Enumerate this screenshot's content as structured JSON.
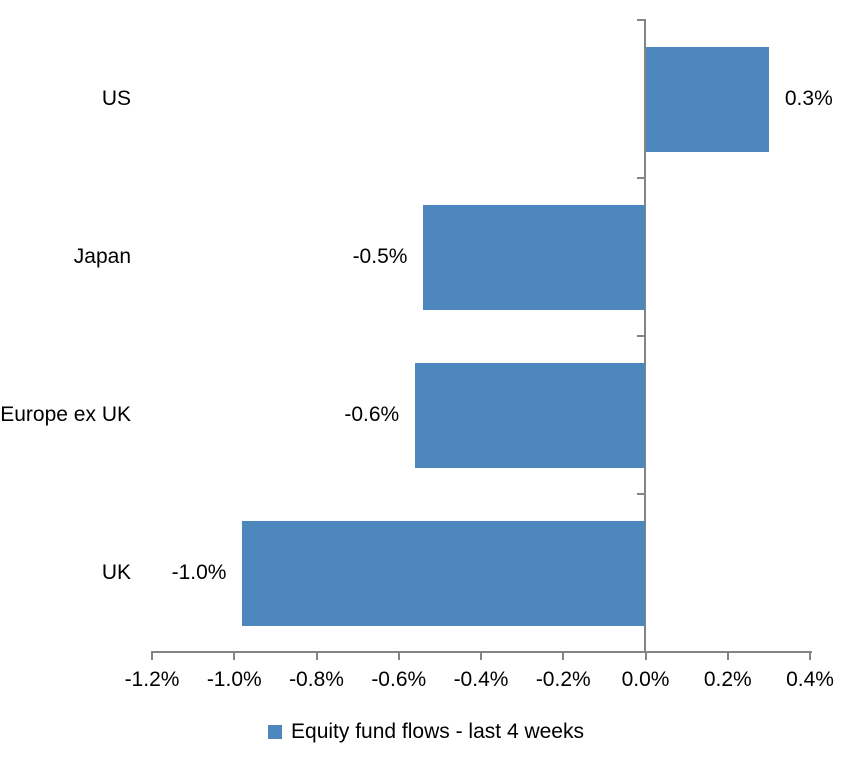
{
  "chart_data": {
    "type": "bar",
    "orientation": "horizontal",
    "title": "",
    "categories": [
      "US",
      "Japan",
      "Europe ex UK",
      "UK"
    ],
    "series": [
      {
        "name": "Equity fund flows - last 4 weeks",
        "values": [
          0.3,
          -0.54,
          -0.56,
          -0.98
        ],
        "data_labels": [
          "0.3%",
          "-0.5%",
          "-0.6%",
          "-1.0%"
        ]
      }
    ],
    "x_axis": {
      "min": -1.2,
      "max": 0.4,
      "step": 0.2,
      "tick_labels": [
        "-1.2%",
        "-1.0%",
        "-0.8%",
        "-0.6%",
        "-0.4%",
        "-0.2%",
        "0.0%",
        "0.2%",
        "0.4%"
      ]
    },
    "grid": false,
    "legend": {
      "position": "bottom",
      "label": "Equity fund flows - last 4 weeks"
    },
    "colors": {
      "bar": "#4E87BE",
      "axis": "#848484",
      "text": "#000000"
    }
  }
}
